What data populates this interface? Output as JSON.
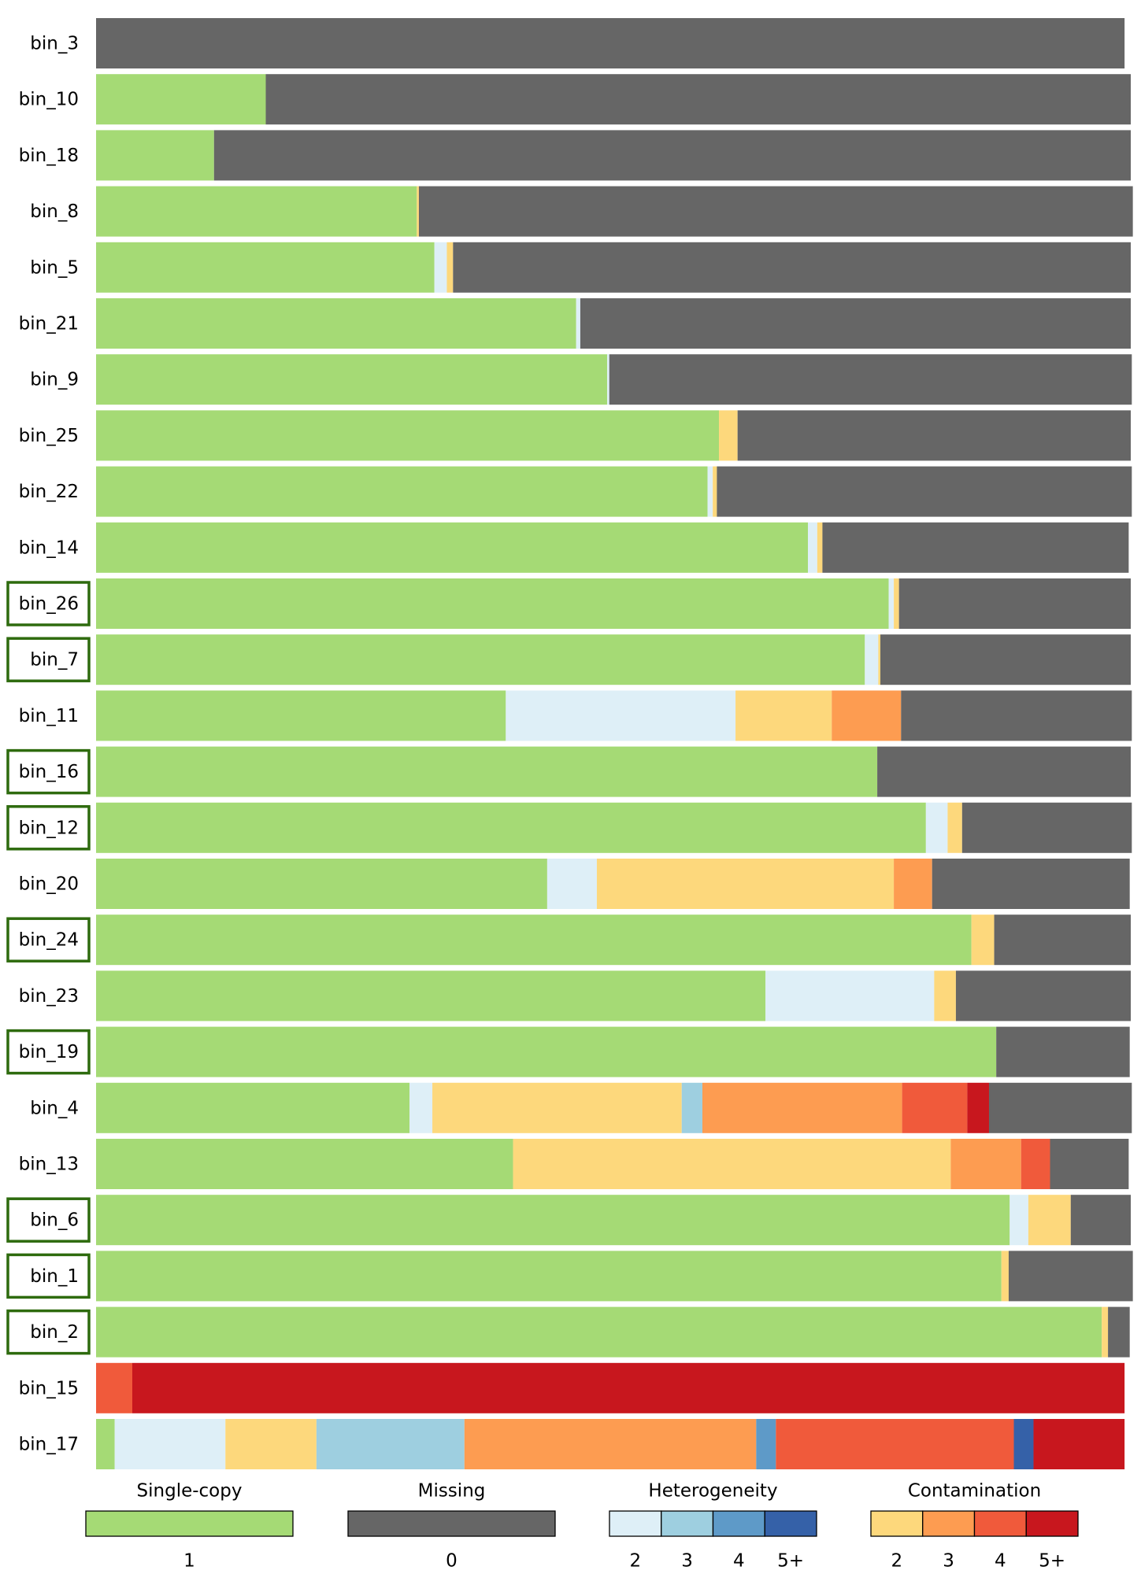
{
  "chart_data": {
    "type": "bar",
    "orientation": "horizontal",
    "stacked": true,
    "xlim": [
      0,
      100
    ],
    "categories": [
      "bin_3",
      "bin_10",
      "bin_18",
      "bin_8",
      "bin_5",
      "bin_21",
      "bin_9",
      "bin_25",
      "bin_22",
      "bin_14",
      "bin_26",
      "bin_7",
      "bin_11",
      "bin_16",
      "bin_12",
      "bin_20",
      "bin_24",
      "bin_23",
      "bin_19",
      "bin_4",
      "bin_13",
      "bin_6",
      "bin_1",
      "bin_2",
      "bin_15",
      "bin_17"
    ],
    "highlight": [
      false,
      false,
      false,
      false,
      false,
      false,
      false,
      false,
      false,
      false,
      true,
      true,
      false,
      true,
      true,
      false,
      true,
      false,
      true,
      false,
      false,
      true,
      true,
      true,
      false,
      false
    ],
    "highlight_color": "#2e6b0e",
    "groups": [
      {
        "title": "Single-copy",
        "series": [
          {
            "name": "1",
            "color": "#a5da75",
            "values": [
              0,
              16.4,
              11.4,
              31.0,
              32.7,
              46.4,
              49.4,
              60.2,
              59.1,
              68.8,
              76.6,
              74.3,
              39.6,
              75.5,
              80.2,
              43.6,
              84.6,
              64.7,
              87.0,
              30.3,
              40.3,
              88.3,
              87.5,
              97.2,
              0,
              1.8
            ]
          }
        ]
      },
      {
        "title": "Missing",
        "series": [
          {
            "name": "0",
            "color": "#666666",
            "values": [
              99.4,
              83.6,
              88.6,
              69.0,
              65.5,
              53.2,
              50.5,
              38.0,
              40.1,
              29.6,
              22.4,
              24.2,
              22.3,
              24.5,
              16.4,
              19.1,
              13.2,
              16.9,
              12.9,
              13.8,
              7.6,
              5.8,
              12.0,
              2.1,
              0,
              0
            ]
          }
        ]
      },
      {
        "title": "Heterogeneity",
        "series": [
          {
            "name": "2",
            "color": "#deeff7",
            "values": [
              0,
              0,
              0,
              0,
              1.2,
              0.4,
              0.2,
              0,
              0.5,
              0.9,
              0.5,
              1.3,
              22.2,
              0,
              2.1,
              4.8,
              0,
              16.3,
              0,
              2.2,
              0,
              1.8,
              0,
              0,
              0,
              10.7
            ]
          },
          {
            "name": "3",
            "color": "#9ecfe0",
            "values": [
              0,
              0,
              0,
              0,
              0,
              0,
              0,
              0,
              0,
              0,
              0,
              0,
              0,
              0,
              0,
              0,
              0,
              0,
              0,
              2.0,
              0,
              0,
              0,
              0,
              0,
              14.3
            ]
          },
          {
            "name": "4",
            "color": "#5e9ac8",
            "values": [
              0,
              0,
              0,
              0,
              0,
              0,
              0,
              0,
              0,
              0,
              0,
              0,
              0,
              0,
              0,
              0,
              0,
              0,
              0,
              0,
              0,
              0,
              0,
              0,
              0,
              1.9
            ]
          },
          {
            "name": "5+",
            "color": "#3561a8",
            "values": [
              0,
              0,
              0,
              0,
              0,
              0,
              0,
              0,
              0,
              0,
              0,
              0,
              0,
              0,
              0,
              0,
              0,
              0,
              0,
              0,
              0,
              0,
              0,
              0,
              0,
              1.9
            ]
          }
        ]
      },
      {
        "title": "Contamination",
        "series": [
          {
            "name": "2",
            "color": "#fdd87c",
            "values": [
              0,
              0,
              0,
              0.2,
              0.6,
              0,
              0,
              1.8,
              0.4,
              0.5,
              0.5,
              0.2,
              9.3,
              0,
              1.4,
              28.7,
              2.2,
              2.1,
              0,
              24.1,
              42.3,
              4.1,
              0.7,
              0.6,
              0,
              8.8
            ]
          },
          {
            "name": "3",
            "color": "#fd9c51",
            "values": [
              0,
              0,
              0,
              0,
              0,
              0,
              0,
              0,
              0,
              0,
              0,
              0,
              6.7,
              0,
              0,
              3.7,
              0,
              0,
              0,
              19.3,
              6.8,
              0,
              0,
              0,
              0,
              28.2
            ]
          },
          {
            "name": "4",
            "color": "#f05a3b",
            "values": [
              0,
              0,
              0,
              0,
              0,
              0,
              0,
              0,
              0,
              0,
              0,
              0,
              0,
              0,
              0,
              0,
              0,
              0,
              0,
              6.3,
              2.8,
              0,
              0,
              0,
              3.5,
              23.0
            ]
          },
          {
            "name": "5+",
            "color": "#c8171e",
            "values": [
              0,
              0,
              0,
              0,
              0,
              0,
              0,
              0,
              0,
              0,
              0,
              0,
              0,
              0,
              0,
              0,
              0,
              0,
              0,
              2.1,
              0,
              0,
              0,
              0,
              95.9,
              8.8
            ]
          }
        ]
      }
    ]
  }
}
